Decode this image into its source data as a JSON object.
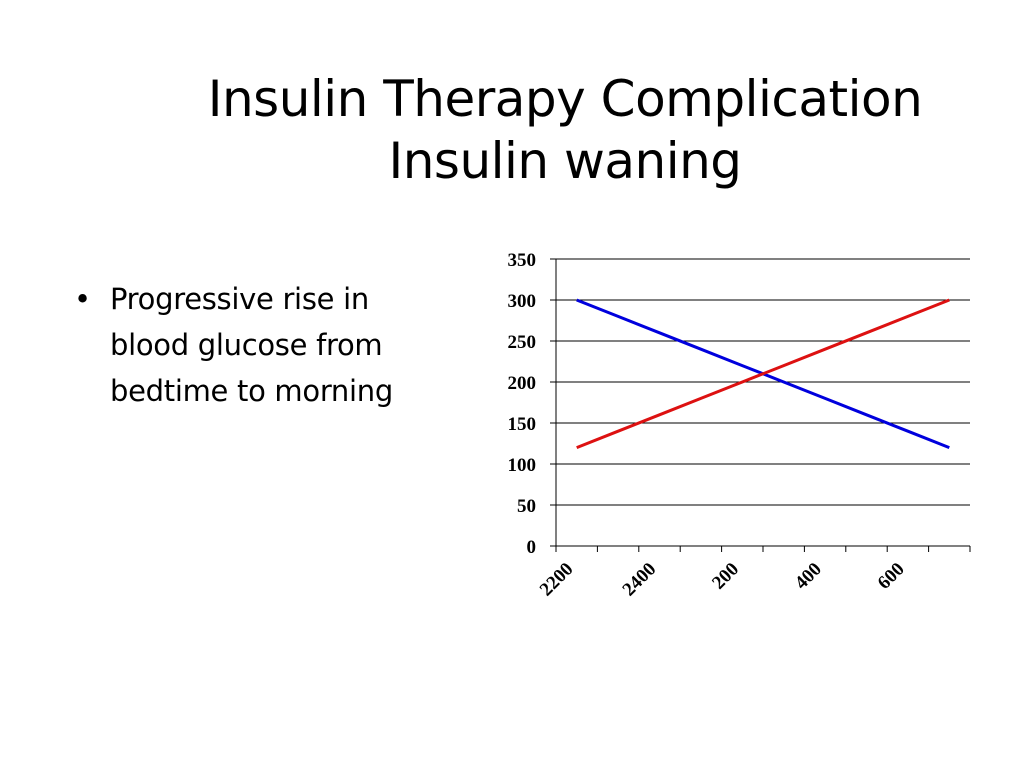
{
  "slide": {
    "title_line1": "Insulin Therapy Complication",
    "title_line2": "Insulin waning",
    "bullets": [
      "Progressive rise in blood glucose from bedtime to morning"
    ]
  },
  "chart_data": {
    "type": "line",
    "title": "",
    "xlabel": "",
    "ylabel": "",
    "ylim": [
      0,
      350
    ],
    "yticks": [
      0,
      50,
      100,
      150,
      200,
      250,
      300,
      350
    ],
    "xtick_labels": [
      "2200",
      "2400",
      "200",
      "400",
      "600"
    ],
    "x": [
      "2200",
      "2300",
      "2400",
      "100",
      "200",
      "300",
      "400",
      "500",
      "600",
      "700"
    ],
    "grid": true,
    "legend": "none",
    "series": [
      {
        "color": "#0000dd",
        "values": [
          300,
          280,
          260,
          240,
          220,
          200,
          180,
          160,
          140,
          120
        ]
      },
      {
        "color": "#dd1111",
        "values": [
          120,
          140,
          160,
          180,
          200,
          220,
          240,
          260,
          280,
          300
        ]
      }
    ]
  }
}
